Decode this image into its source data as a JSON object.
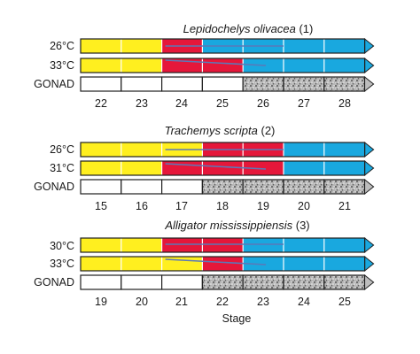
{
  "colors": {
    "female_yellow": "#ffef1f",
    "intermediate_red": "#e5173a",
    "male_blue": "#19a8df",
    "outline": "#1f1f1f",
    "band_fill": "#ffffff",
    "stipple_base": "#b6b6b6",
    "divider_line": "#5b79b8",
    "arrow_cap": "#bdbdbd"
  },
  "panels": [
    {
      "title": "Lepidochelys olivacea (1)",
      "species": "Lepidochelys olivacea",
      "ref": "(1)",
      "rows": [
        {
          "label": "26°C",
          "colors": [
            "yellow",
            "yellow",
            "red",
            "blue",
            "blue",
            "blue",
            "blue"
          ]
        },
        {
          "label": "33°C",
          "colors": [
            "yellow",
            "yellow",
            "red",
            "red",
            "blue",
            "blue",
            "blue"
          ]
        }
      ],
      "gonad": {
        "label": "GONAD",
        "stippled_from": 4
      },
      "stages": [
        "22",
        "23",
        "24",
        "25",
        "26",
        "27",
        "28"
      ]
    },
    {
      "title": "Trachemys scripta (2)",
      "species": "Trachemys scripta",
      "ref": "(2)",
      "rows": [
        {
          "label": "26°C",
          "colors": [
            "yellow",
            "yellow",
            "yellow",
            "red",
            "red",
            "blue",
            "blue"
          ]
        },
        {
          "label": "31°C",
          "colors": [
            "yellow",
            "yellow",
            "red",
            "red",
            "red",
            "blue",
            "blue"
          ]
        }
      ],
      "gonad": {
        "label": "GONAD",
        "stippled_from": 3
      },
      "stages": [
        "15",
        "16",
        "17",
        "18",
        "19",
        "20",
        "21"
      ]
    },
    {
      "title": "Alligator mississippiensis (3)",
      "species": "Alligator mississippiensis",
      "ref": "(3)",
      "rows": [
        {
          "label": "30°C",
          "colors": [
            "yellow",
            "yellow",
            "red",
            "red",
            "blue",
            "blue",
            "blue"
          ]
        },
        {
          "label": "33°C",
          "colors": [
            "yellow",
            "yellow",
            "yellow",
            "red",
            "blue",
            "blue",
            "blue"
          ]
        }
      ],
      "gonad": {
        "label": "GONAD",
        "stippled_from": 3
      },
      "stages": [
        "19",
        "20",
        "21",
        "22",
        "23",
        "24",
        "25"
      ]
    }
  ],
  "xlabel": "Stage"
}
